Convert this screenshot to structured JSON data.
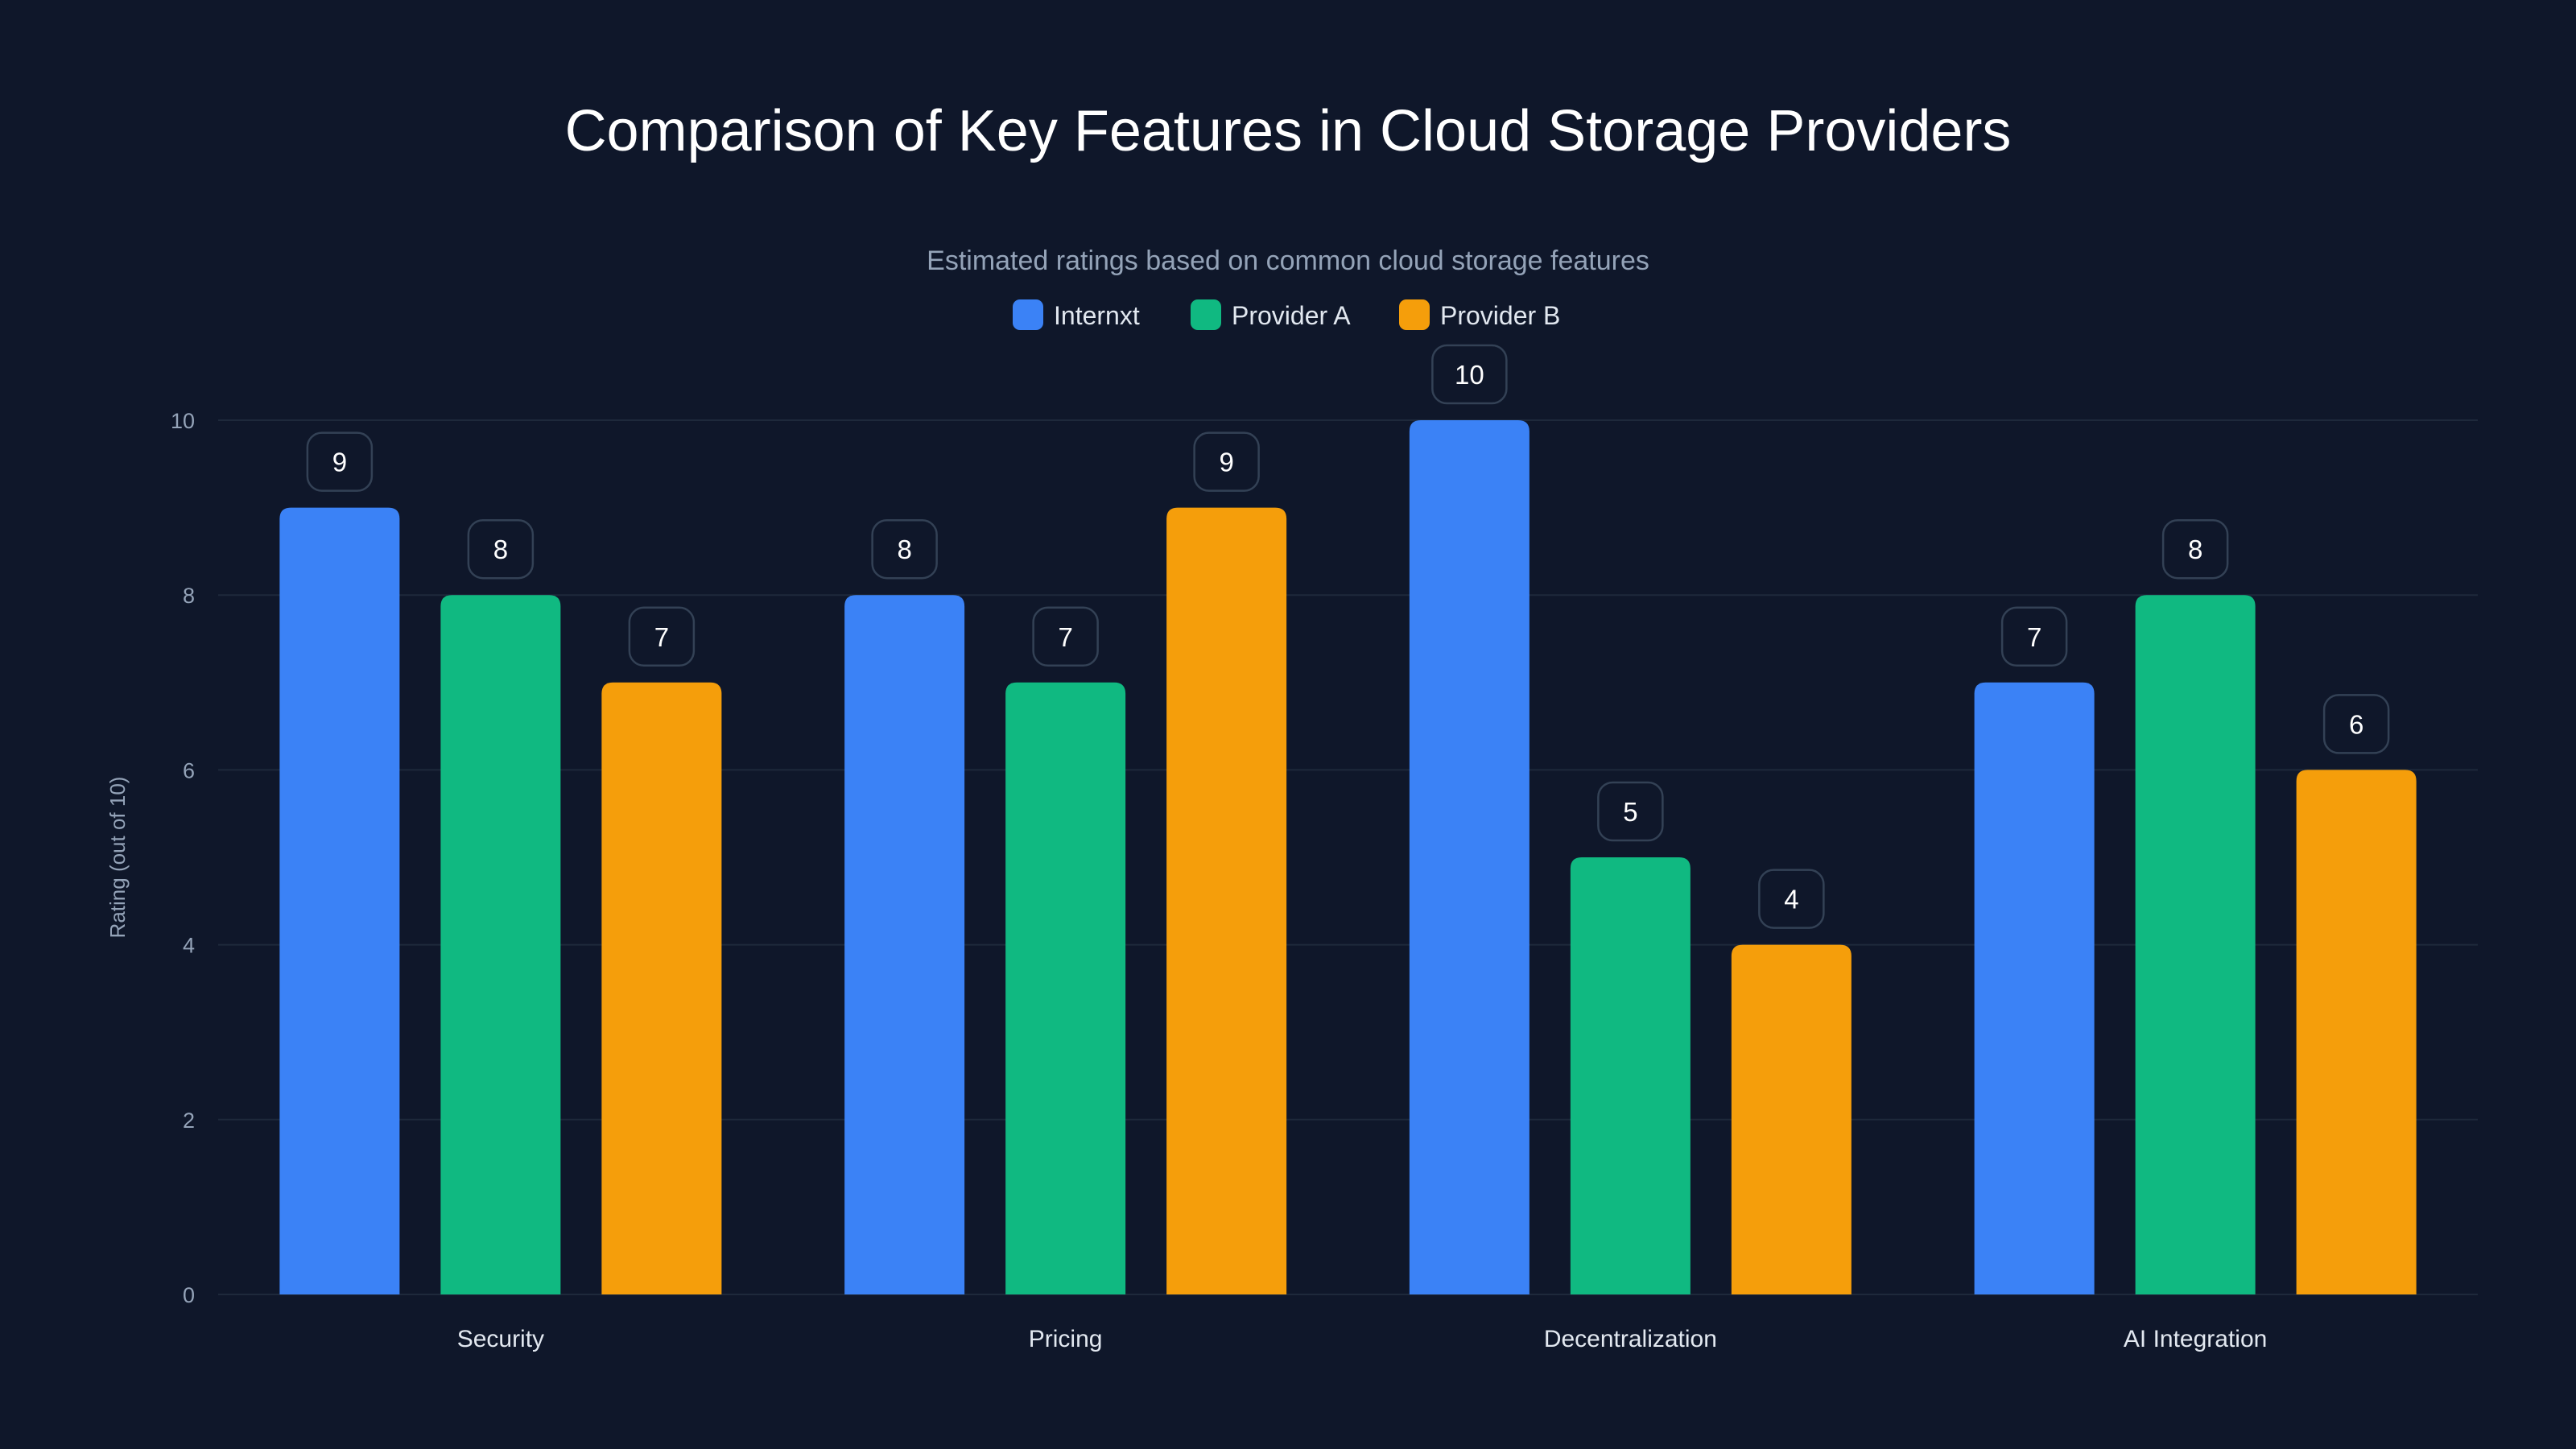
{
  "chart_data": {
    "type": "bar",
    "title": "Comparison of Key Features in Cloud Storage Providers",
    "subtitle": "Estimated ratings based on common cloud storage features",
    "xlabel": "",
    "ylabel": "Rating (out of 10)",
    "ylim": [
      0,
      10
    ],
    "yticks": [
      0,
      2,
      4,
      6,
      8,
      10
    ],
    "grid": true,
    "legend_position": "top-center",
    "categories": [
      "Security",
      "Pricing",
      "Decentralization",
      "AI Integration"
    ],
    "series": [
      {
        "name": "Internxt",
        "color": "#3b82f6",
        "values": [
          9,
          8,
          10,
          7
        ]
      },
      {
        "name": "Provider A",
        "color": "#10b981",
        "values": [
          8,
          7,
          5,
          8
        ]
      },
      {
        "name": "Provider B",
        "color": "#f59e0b",
        "values": [
          7,
          9,
          4,
          6
        ]
      }
    ]
  }
}
